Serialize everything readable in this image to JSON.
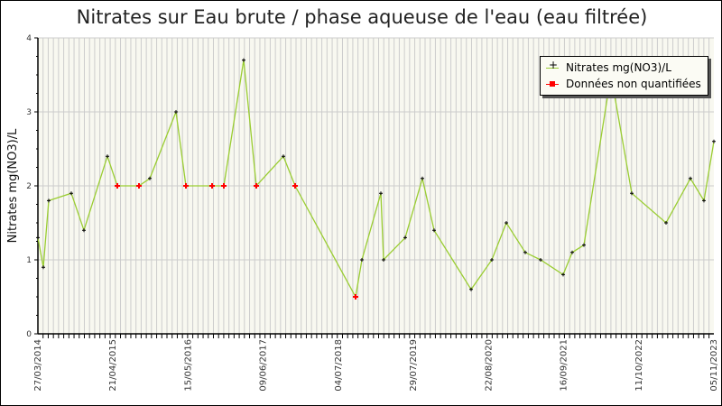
{
  "title": "Nitrates sur Eau brute / phase aqueuse de l'eau (eau filtrée)",
  "colors": {
    "line": "#9acd32",
    "point": "#000000",
    "nonquant": "#ff0000",
    "plot_bg": "#f8f8f0",
    "grid": "#cccccc"
  },
  "legend": {
    "items": [
      {
        "label": "Nitrates mg(NO3)/L",
        "color": "#000000"
      },
      {
        "label": "Données non quantifiées",
        "color": "#ff0000"
      }
    ]
  },
  "chart_data": {
    "type": "line",
    "title": "Nitrates sur Eau brute / phase aqueuse de l'eau (eau filtrée)",
    "xlabel": "",
    "ylabel": "Nitrates mg(NO3)/L",
    "ylim": [
      0,
      4
    ],
    "yticks": [
      "0",
      "1",
      "2",
      "3",
      "4"
    ],
    "xticks": [
      "27/03/2014",
      "21/04/2015",
      "15/05/2016",
      "09/06/2017",
      "04/07/2018",
      "29/07/2019",
      "22/08/2020",
      "16/09/2021",
      "11/10/2022",
      "05/11/2023"
    ],
    "grid": true,
    "legend_position": "top-right",
    "series": [
      {
        "name": "Nitrates mg(NO3)/L",
        "points": [
          {
            "px": 41,
            "y": 1.3,
            "nq": false
          },
          {
            "px": 47,
            "y": 0.9,
            "nq": false
          },
          {
            "px": 53,
            "y": 1.8,
            "nq": false
          },
          {
            "px": 78,
            "y": 1.9,
            "nq": false
          },
          {
            "px": 92,
            "y": 1.4,
            "nq": false
          },
          {
            "px": 118,
            "y": 2.4,
            "nq": false
          },
          {
            "px": 129,
            "y": 2.0,
            "nq": true
          },
          {
            "px": 153,
            "y": 2.0,
            "nq": true
          },
          {
            "px": 165,
            "y": 2.1,
            "nq": false
          },
          {
            "px": 194,
            "y": 3.0,
            "nq": false
          },
          {
            "px": 205,
            "y": 2.0,
            "nq": true
          },
          {
            "px": 234,
            "y": 2.0,
            "nq": true
          },
          {
            "px": 247,
            "y": 2.0,
            "nq": true
          },
          {
            "px": 269,
            "y": 3.7,
            "nq": false
          },
          {
            "px": 283,
            "y": 2.0,
            "nq": true
          },
          {
            "px": 313,
            "y": 2.4,
            "nq": false
          },
          {
            "px": 326,
            "y": 2.0,
            "nq": true
          },
          {
            "px": 393,
            "y": 0.5,
            "nq": true
          },
          {
            "px": 400,
            "y": 1.0,
            "nq": false
          },
          {
            "px": 421,
            "y": 1.9,
            "nq": false
          },
          {
            "px": 424,
            "y": 1.0,
            "nq": false
          },
          {
            "px": 448,
            "y": 1.3,
            "nq": false
          },
          {
            "px": 467,
            "y": 2.1,
            "nq": false
          },
          {
            "px": 480,
            "y": 1.4,
            "nq": false
          },
          {
            "px": 521,
            "y": 0.6,
            "nq": false
          },
          {
            "px": 544,
            "y": 1.0,
            "nq": false
          },
          {
            "px": 560,
            "y": 1.5,
            "nq": false
          },
          {
            "px": 581,
            "y": 1.1,
            "nq": false
          },
          {
            "px": 598,
            "y": 1.0,
            "nq": false
          },
          {
            "px": 623,
            "y": 0.8,
            "nq": false
          },
          {
            "px": 633,
            "y": 1.1,
            "nq": false
          },
          {
            "px": 646,
            "y": 1.2,
            "nq": false
          },
          {
            "px": 676,
            "y": 3.5,
            "nq": false
          },
          {
            "px": 699,
            "y": 1.9,
            "nq": false
          },
          {
            "px": 737,
            "y": 1.5,
            "nq": false
          },
          {
            "px": 764,
            "y": 2.1,
            "nq": false
          },
          {
            "px": 779,
            "y": 1.8,
            "nq": false
          },
          {
            "px": 790,
            "y": 2.6,
            "nq": false
          }
        ]
      }
    ]
  }
}
